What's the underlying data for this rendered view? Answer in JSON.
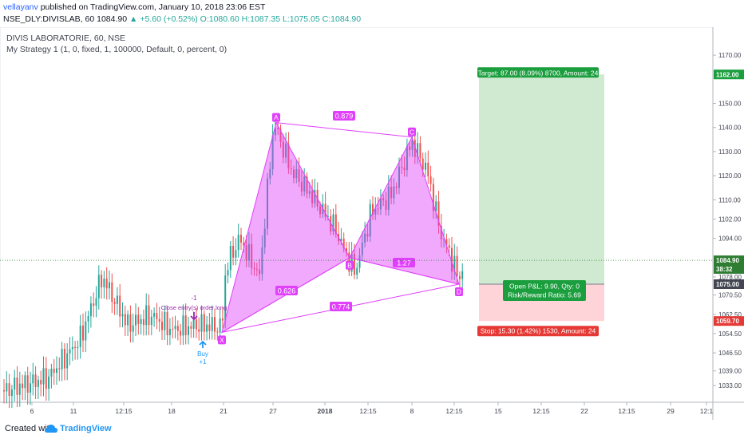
{
  "header": {
    "username": "vellayanv",
    "publish_text": "published on TradingView.com, January 10, 2018 23:06 EST",
    "symbol": "NSE_DLY:DIVISLAB, 60",
    "last": "1084.90",
    "change": "+5.60 (+0.52%)",
    "open": "O:1080.60",
    "high": "H:1087.35",
    "low": "L:1075.05",
    "close": "C:1084.90"
  },
  "legend": {
    "symbol_title": "DIVIS LABORATORIE, 60, NSE",
    "strategy": "My Strategy 1 (1, 0, fixed, 1, 100000, Default, 0, percent, 0)"
  },
  "footer": {
    "created_with": "Created with",
    "brand": "TradingView"
  },
  "colors": {
    "up": "#26a69a",
    "down": "#ef5350",
    "pattern": "#e040fb",
    "target_zone": "#c8e6c9",
    "stop_zone": "#ffcdd2",
    "label_green": "#1b9e3e",
    "label_red": "#e53935",
    "current_price": "#2e7d32"
  },
  "chart_data": {
    "type": "candlestick",
    "title": "DIVIS LABORATORIE, 60, NSE",
    "x_tick_labels": [
      "6",
      "11",
      "12:15",
      "18",
      "21",
      "27",
      "2018",
      "12:15",
      "8",
      "12:15",
      "15",
      "12:15",
      "22",
      "12:15",
      "29",
      "12:1"
    ],
    "y_tick_labels": [
      "1170.00",
      "1150.00",
      "1140.00",
      "1130.00",
      "1120.00",
      "1110.00",
      "1102.00",
      "1094.00",
      "1078.00",
      "1070.50",
      "1062.50",
      "1054.50",
      "1046.50",
      "1039.00",
      "1033.00"
    ],
    "y_tick_values": [
      1170,
      1150,
      1140,
      1130,
      1120,
      1110,
      1102,
      1094,
      1078,
      1070.5,
      1062.5,
      1054.5,
      1046.5,
      1039,
      1033
    ],
    "ylim": [
      1028,
      1175
    ],
    "price_badges": [
      {
        "text": "1162.00",
        "value": 1162,
        "color": "#1b9e3e"
      },
      {
        "text": "1084.90",
        "value": 1084.9,
        "color": "#2e7d32"
      },
      {
        "text": "38:32",
        "value": 1081.3,
        "color": "#2e7d32"
      },
      {
        "text": "1075.00",
        "value": 1075,
        "color": "#434651"
      },
      {
        "text": "1059.70",
        "value": 1059.7,
        "color": "#e53935"
      }
    ],
    "harmonic_pattern": {
      "points": [
        {
          "label": "X",
          "value": 1055
        },
        {
          "label": "A",
          "value": 1142
        },
        {
          "label": "B",
          "value": 1086
        },
        {
          "label": "C",
          "value": 1136
        },
        {
          "label": "D",
          "value": 1075
        }
      ],
      "ratios": [
        "0.626",
        "0.879",
        "1.27",
        "0.774"
      ]
    },
    "position": {
      "entry": 1075,
      "target": 1162,
      "stop": 1059.7,
      "target_label": "Target: 87.00 (8.09%) 8700, Amount: 24",
      "stop_label": "Stop: 15.30 (1.42%) 1530, Amount: 24",
      "pnl_label": "Open P&L: 9.90, Qty: 0",
      "rr_label": "Risk/Reward Ratio: 5.69"
    },
    "signals": [
      {
        "text": "-1",
        "type": "sell"
      },
      {
        "text": "Close entry(s) order long",
        "type": "close"
      },
      {
        "text": "Buy",
        "type": "buy"
      },
      {
        "text": "+1",
        "type": "buy"
      }
    ]
  }
}
